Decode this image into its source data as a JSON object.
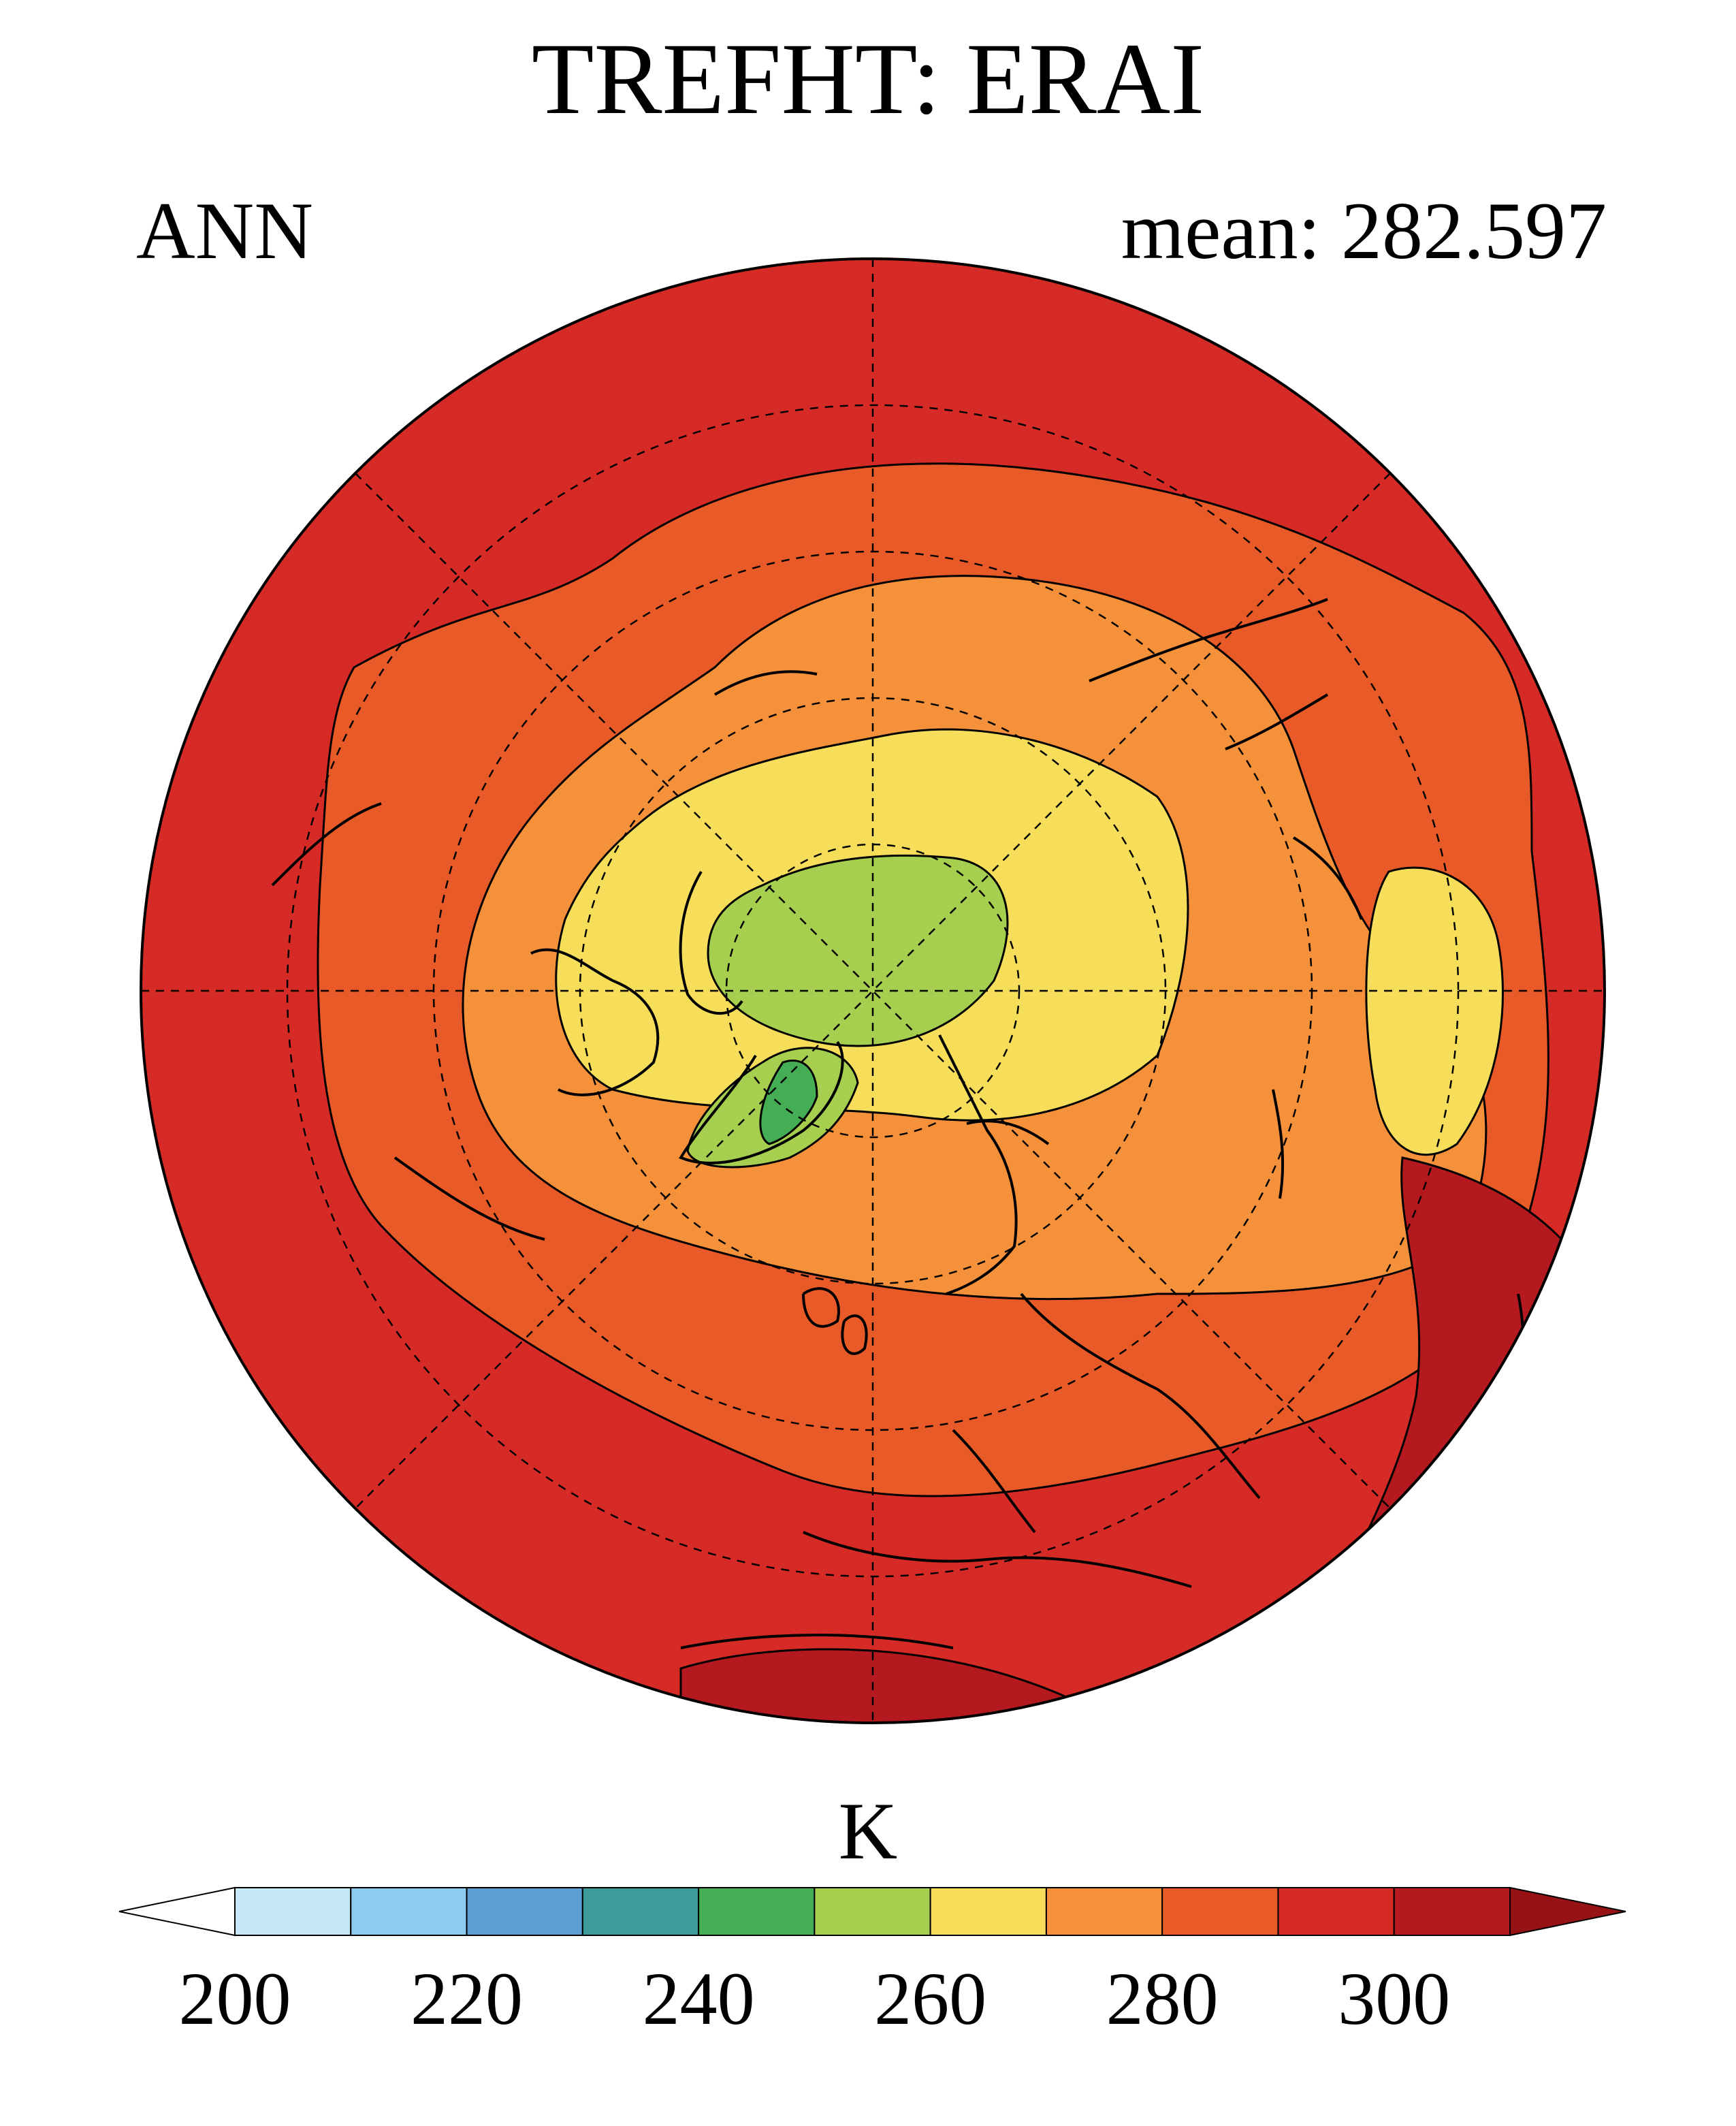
{
  "header": {
    "title": "TREFHT: ERAI",
    "season": "ANN",
    "mean_label": "mean: 282.597"
  },
  "map": {
    "projection": "north-polar-stereographic",
    "colors": {
      "band_lt220": "#c5e8f7",
      "band_220_230": "#8ecbf0",
      "band_230_240": "#5e9fd3",
      "band_240_250": "#3f9a9c",
      "band_245": "#45ae55",
      "band_250_260": "#a6cf4f",
      "band_260_270": "#f7de5a",
      "band_270_280": "#f5913b",
      "band_280_290": "#e85a28",
      "band_290_300": "#d52a26",
      "band_gt300": "#b3191f"
    }
  },
  "colorbar": {
    "units": "K",
    "tick_labels": [
      "200",
      "220",
      "240",
      "260",
      "280",
      "300"
    ],
    "colors": [
      "#ffffff",
      "#c5e8f7",
      "#8ecbf0",
      "#5e9fd3",
      "#3f9a9c",
      "#45ae55",
      "#a6cf4f",
      "#f7de5a",
      "#f5913b",
      "#e85a28",
      "#d52a26",
      "#b3191f",
      "#961215"
    ]
  }
}
